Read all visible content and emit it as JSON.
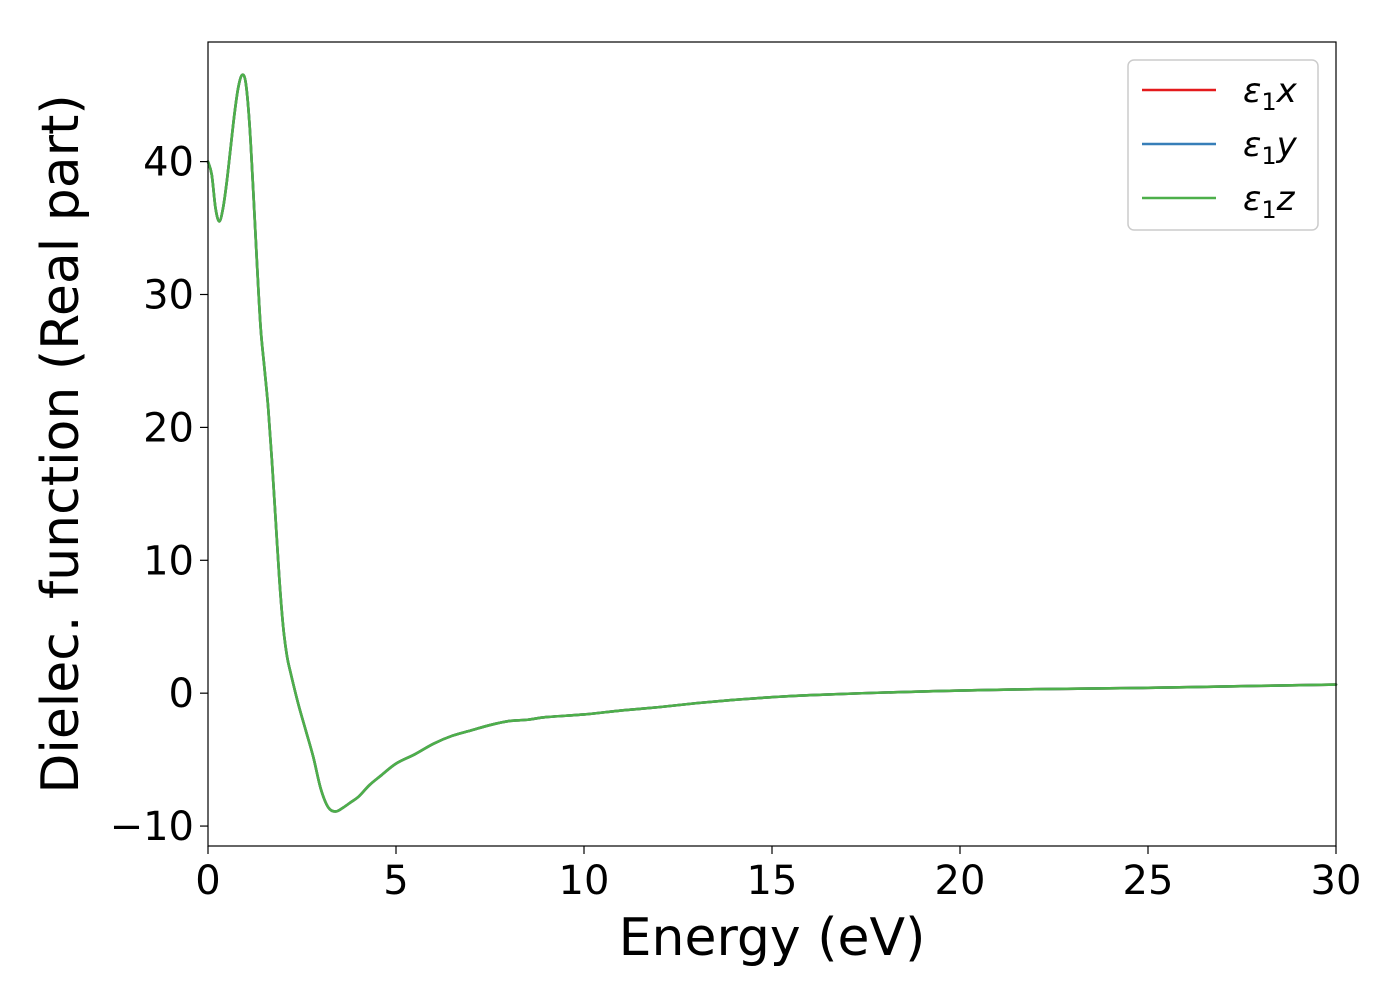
{
  "chart_data": {
    "type": "line",
    "title": "",
    "xlabel": "Energy (eV)",
    "ylabel": "Dielec. function (Real part)",
    "xlim": [
      0,
      30
    ],
    "ylim": [
      -11.5,
      49
    ],
    "xticks": [
      0,
      5,
      10,
      15,
      20,
      25,
      30
    ],
    "yticks": [
      -10,
      0,
      10,
      20,
      30,
      40
    ],
    "xtick_labels": [
      "0",
      "5",
      "10",
      "15",
      "20",
      "25",
      "30"
    ],
    "ytick_labels": [
      "−10",
      "0",
      "10",
      "20",
      "30",
      "40"
    ],
    "grid": false,
    "legend_position": "top-right",
    "x": [
      0,
      0.1,
      0.2,
      0.3,
      0.4,
      0.5,
      0.6,
      0.7,
      0.8,
      0.9,
      1.0,
      1.1,
      1.2,
      1.3,
      1.4,
      1.5,
      1.6,
      1.7,
      1.8,
      1.9,
      2.0,
      2.1,
      2.2,
      2.4,
      2.6,
      2.8,
      3.0,
      3.2,
      3.4,
      3.6,
      3.8,
      4.0,
      4.3,
      4.6,
      5.0,
      5.5,
      6.0,
      6.5,
      7.0,
      7.5,
      8.0,
      8.5,
      9.0,
      10.0,
      11.0,
      12.0,
      13.0,
      14.0,
      15.0,
      16.0,
      18.0,
      20.0,
      22.0,
      25.0,
      28.0,
      30.0
    ],
    "series": [
      {
        "name": "ε₁x",
        "color": "#e41a1c",
        "values": [
          40.0,
          39.0,
          36.5,
          35.5,
          36.5,
          38.5,
          41.0,
          43.5,
          45.5,
          46.5,
          46.0,
          43.0,
          38.0,
          32.5,
          27.5,
          24.5,
          21.5,
          17.5,
          13.0,
          8.5,
          5.0,
          2.8,
          1.5,
          -0.8,
          -2.8,
          -4.8,
          -7.2,
          -8.6,
          -8.9,
          -8.6,
          -8.2,
          -7.8,
          -6.9,
          -6.2,
          -5.3,
          -4.6,
          -3.8,
          -3.2,
          -2.8,
          -2.4,
          -2.1,
          -2.0,
          -1.8,
          -1.6,
          -1.3,
          -1.05,
          -0.75,
          -0.5,
          -0.3,
          -0.15,
          0.05,
          0.2,
          0.3,
          0.4,
          0.55,
          0.65
        ]
      },
      {
        "name": "ε₁y",
        "color": "#377eb8",
        "values": [
          40.0,
          39.0,
          36.5,
          35.5,
          36.5,
          38.5,
          41.0,
          43.5,
          45.5,
          46.5,
          46.0,
          43.0,
          38.0,
          32.5,
          27.5,
          24.5,
          21.5,
          17.5,
          13.0,
          8.5,
          5.0,
          2.8,
          1.5,
          -0.8,
          -2.8,
          -4.8,
          -7.2,
          -8.6,
          -8.9,
          -8.6,
          -8.2,
          -7.8,
          -6.9,
          -6.2,
          -5.3,
          -4.6,
          -3.8,
          -3.2,
          -2.8,
          -2.4,
          -2.1,
          -2.0,
          -1.8,
          -1.6,
          -1.3,
          -1.05,
          -0.75,
          -0.5,
          -0.3,
          -0.15,
          0.05,
          0.2,
          0.3,
          0.4,
          0.55,
          0.65
        ]
      },
      {
        "name": "ε₁z",
        "color": "#4daf4a",
        "values": [
          40.0,
          39.0,
          36.5,
          35.5,
          36.5,
          38.5,
          41.0,
          43.5,
          45.5,
          46.5,
          46.0,
          43.0,
          38.0,
          32.5,
          27.5,
          24.5,
          21.5,
          17.5,
          13.0,
          8.5,
          5.0,
          2.8,
          1.5,
          -0.8,
          -2.8,
          -4.8,
          -7.2,
          -8.6,
          -8.9,
          -8.6,
          -8.2,
          -7.8,
          -6.9,
          -6.2,
          -5.3,
          -4.6,
          -3.8,
          -3.2,
          -2.8,
          -2.4,
          -2.1,
          -2.0,
          -1.8,
          -1.6,
          -1.3,
          -1.05,
          -0.75,
          -0.5,
          -0.3,
          -0.15,
          0.05,
          0.2,
          0.3,
          0.4,
          0.55,
          0.65
        ]
      }
    ],
    "legend": [
      {
        "base": "ε",
        "sub": "1",
        "axis": "x"
      },
      {
        "base": "ε",
        "sub": "1",
        "axis": "y"
      },
      {
        "base": "ε",
        "sub": "1",
        "axis": "z"
      }
    ]
  }
}
